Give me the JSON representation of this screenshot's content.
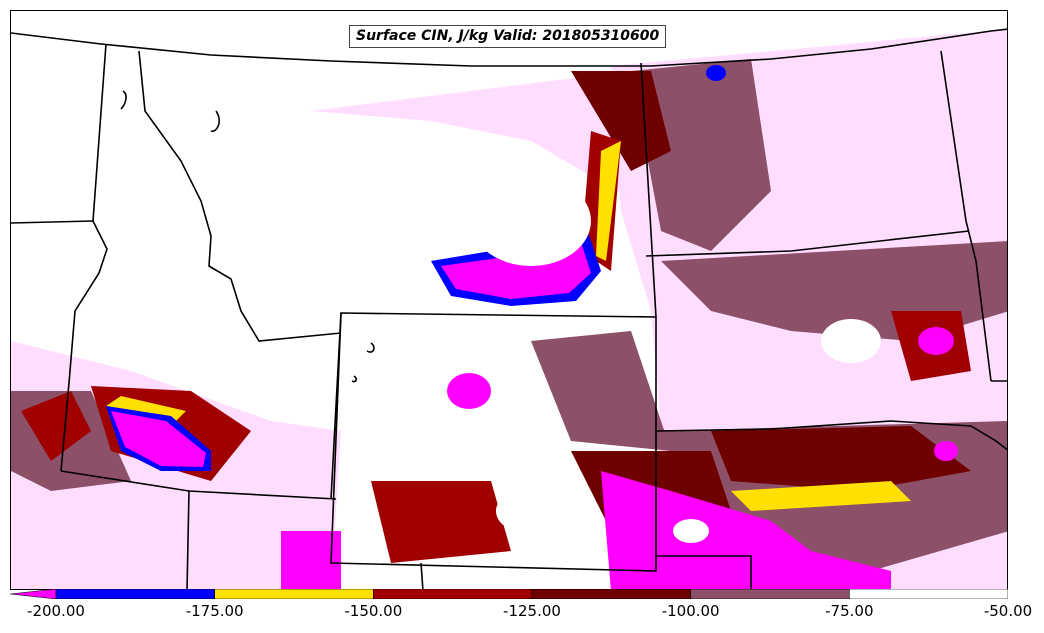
{
  "map": {
    "title": "Surface CIN, J/kg Valid: 201805310600",
    "variable": "Surface CIN",
    "units": "J/kg",
    "valid_time": "201805310600",
    "region": "Northern Rockies / Great Plains"
  },
  "colorbar": {
    "colors": [
      "#ff00ff",
      "#0000ff",
      "#ffe000",
      "#a00000",
      "#6e0000",
      "#8c5068",
      "#ffffff",
      "#ffddff"
    ],
    "levels": [
      "-200.00",
      "-175.00",
      "-150.00",
      "-125.00",
      "-100.00",
      "-75.00",
      "-50.00"
    ],
    "extend": "min"
  },
  "chart_data": {
    "type": "heatmap",
    "title": "Surface CIN, J/kg Valid: 201805310600",
    "levels": [
      -200,
      -175,
      -150,
      -125,
      -100,
      -75,
      -50
    ],
    "colors": [
      "#ff00ff",
      "#0000ff",
      "#ffe000",
      "#a00000",
      "#6e0000",
      "#8c5068",
      "#ffffff",
      "#ffddff"
    ],
    "colorbar_placement": "bottom"
  }
}
